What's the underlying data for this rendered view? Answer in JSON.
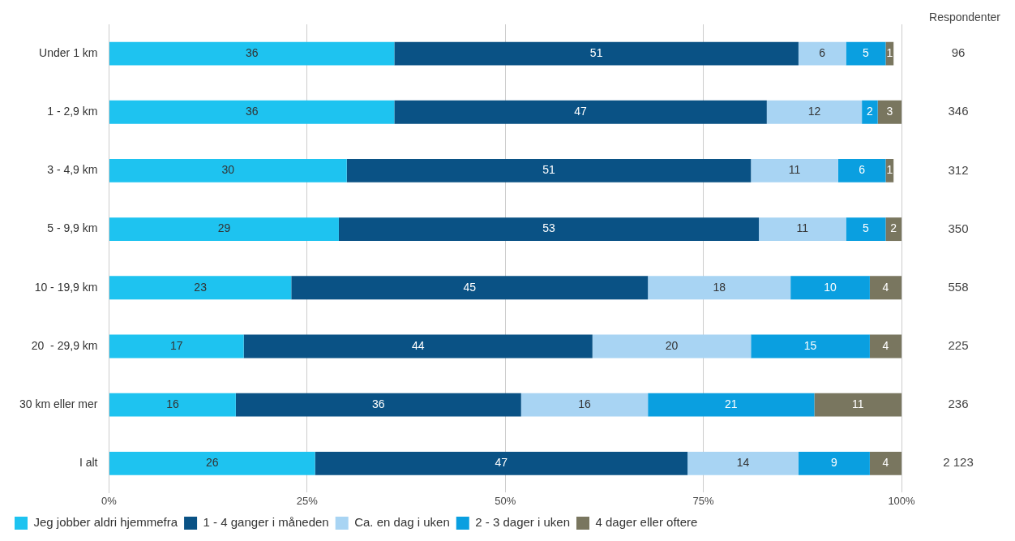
{
  "chart_data": {
    "type": "bar",
    "orientation": "horizontal",
    "stacked": true,
    "data_labels": true,
    "grid": "x",
    "legend": "bottom",
    "categories": [
      "Under 1 km",
      "1 - 2,9 km",
      "3 - 4,9 km",
      "5 - 9,9 km",
      "10 - 19,9 km",
      "20  - 29,9 km",
      "30 km eller mer",
      "I alt"
    ],
    "series": [
      {
        "name": "Jeg jobber aldri hjemmefra",
        "color": "#1ec3f0",
        "values": [
          36,
          36,
          30,
          29,
          23,
          17,
          16,
          26
        ]
      },
      {
        "name": "1 - 4 ganger i måneden",
        "color": "#0a5285",
        "values": [
          51,
          47,
          51,
          53,
          45,
          44,
          36,
          47
        ]
      },
      {
        "name": "Ca. en dag i uken",
        "color": "#a8d4f3",
        "values": [
          6,
          12,
          11,
          11,
          18,
          20,
          16,
          14
        ]
      },
      {
        "name": "2 - 3 dager i uken",
        "color": "#0a9fe0",
        "values": [
          5,
          2,
          6,
          5,
          10,
          15,
          21,
          9
        ]
      },
      {
        "name": "4 dager eller oftere",
        "color": "#79765f",
        "values": [
          1,
          3,
          1,
          2,
          4,
          4,
          11,
          4
        ]
      }
    ],
    "xlim": [
      0,
      100
    ],
    "xticks": [
      {
        "value": 0,
        "label": "0%"
      },
      {
        "value": 25,
        "label": "25%"
      },
      {
        "value": 50,
        "label": "50%"
      },
      {
        "value": 75,
        "label": "75%"
      },
      {
        "value": 100,
        "label": "100%"
      }
    ],
    "annotations": [
      "Respondenter",
      "96",
      "346",
      "312",
      "350",
      "558",
      "225",
      "236",
      "2 123"
    ]
  }
}
